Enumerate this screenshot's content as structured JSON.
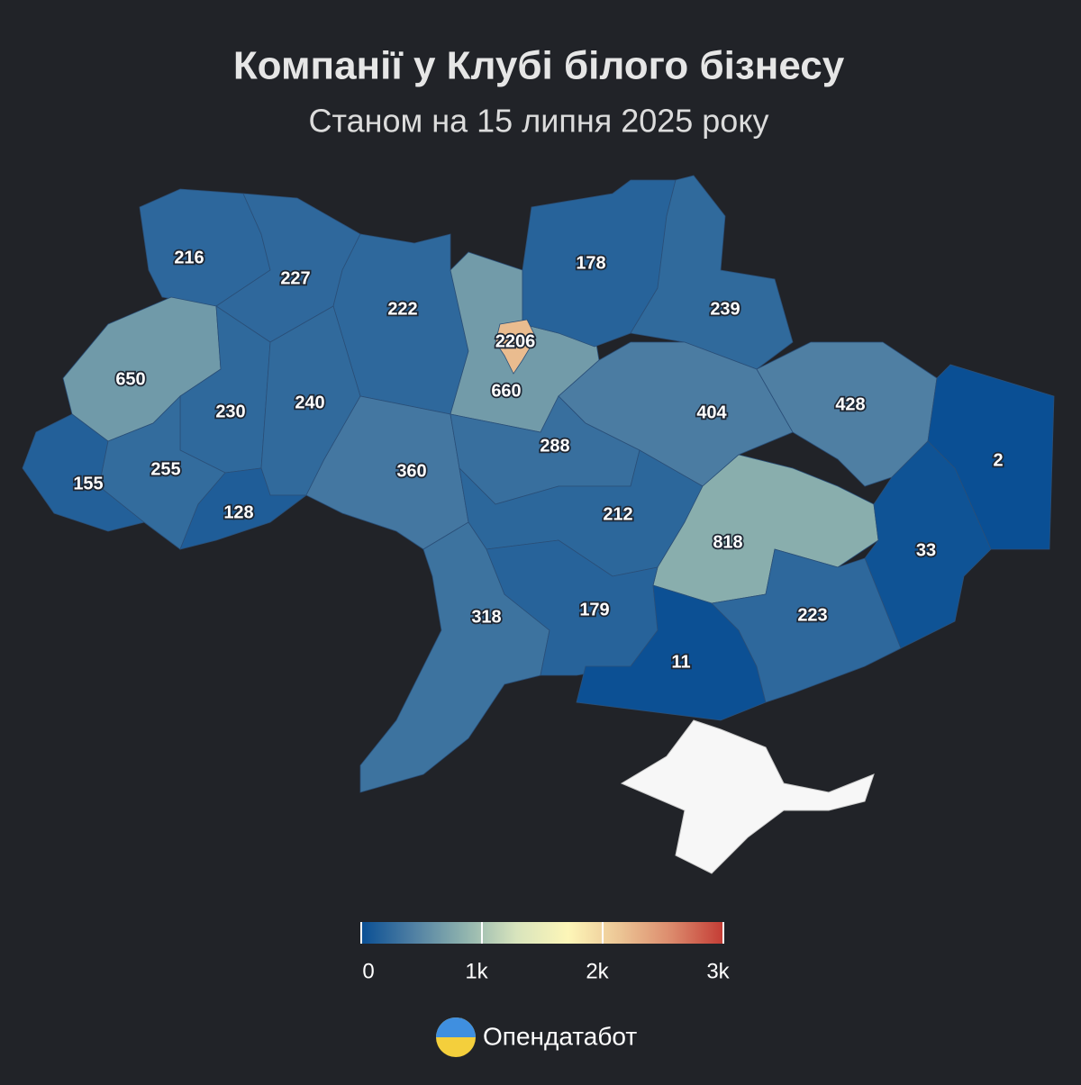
{
  "header": {
    "title": "Компанії у Клубі білого бізнесу",
    "subtitle": "Станом на 15 липня 2025 року"
  },
  "chart_data": {
    "type": "choropleth",
    "values": [
      216,
      227,
      222,
      2206,
      660,
      178,
      239,
      650,
      230,
      240,
      404,
      428,
      2,
      155,
      255,
      128,
      360,
      288,
      212,
      818,
      33,
      318,
      179,
      11,
      223
    ],
    "colorscale": [
      "#0a4f94",
      "#4f7fa3",
      "#8fb3ae",
      "#d8e4bd",
      "#fdf6b8",
      "#ecc595",
      "#dc8a6c",
      "#c43c35"
    ],
    "clim": [
      0,
      3000
    ],
    "cticks": [
      0,
      {
        "value": 1000,
        "label": "1k"
      },
      {
        "value": 2000,
        "label": "2k"
      },
      {
        "value": 3000,
        "label": "3k"
      }
    ]
  },
  "footer": {
    "brand": "Опендатабот"
  }
}
